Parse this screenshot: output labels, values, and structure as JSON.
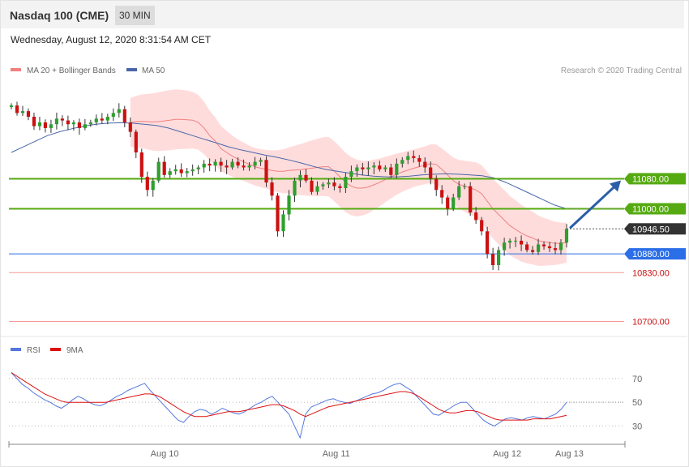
{
  "header": {
    "title": "Nasdaq 100 (CME)",
    "interval": "30 MIN",
    "datetime": "Wednesday, August 12, 2020 8:31:54 AM CET"
  },
  "legend": {
    "ma20_label": "MA 20 + Bollinger Bands",
    "ma50_label": "MA 50",
    "credit": "Research © 2020 Trading Central",
    "rsi_label": "RSI",
    "ma9_label": "9MA"
  },
  "colors": {
    "bull": "#2e9f2e",
    "bear": "#cc1111",
    "bollinger": "#ffd0d0",
    "ma20": "#f08080",
    "ma50": "#4a66a8",
    "resistance": "#55aa11",
    "support": "#2a6ee8",
    "weak": "#f26f6f",
    "arrow": "#2b5da8",
    "rsi": "#5577dd",
    "ma9": "#dd1111"
  },
  "chart_data": [
    {
      "type": "candlestick",
      "title": "Nasdaq 100 (CME)",
      "ylim": [
        10660,
        11340
      ],
      "x_labels": [
        "Aug 10",
        "Aug 11",
        "Aug 12",
        "Aug 13"
      ],
      "levels": [
        {
          "value": 11080,
          "label": "11080.00",
          "kind": "resistance"
        },
        {
          "value": 11000,
          "label": "11000.00",
          "kind": "resistance"
        },
        {
          "value": 10946.5,
          "label": "10946.50",
          "kind": "last"
        },
        {
          "value": 10880,
          "label": "10880.00",
          "kind": "support"
        },
        {
          "value": 10830,
          "label": "10830.00",
          "kind": "weak"
        },
        {
          "value": 10700,
          "label": "10700.00",
          "kind": "weak"
        }
      ],
      "forecast_arrow": {
        "from": 10946,
        "to": 11080
      },
      "close": [
        11275,
        11255,
        11260,
        11245,
        11220,
        11230,
        11215,
        11225,
        11240,
        11235,
        11225,
        11230,
        11215,
        11225,
        11230,
        11240,
        11235,
        11245,
        11255,
        11265,
        11230,
        11205,
        11150,
        11085,
        11050,
        11075,
        11125,
        11090,
        11100,
        11105,
        11095,
        11100,
        11105,
        11110,
        11120,
        11115,
        11125,
        11115,
        11110,
        11125,
        11115,
        11110,
        11115,
        11125,
        11130,
        11070,
        11035,
        10940,
        10985,
        11035,
        11075,
        11090,
        11075,
        11045,
        11060,
        11065,
        11070,
        11060,
        11055,
        11085,
        11100,
        11110,
        11105,
        11110,
        11115,
        11105,
        11110,
        11090,
        11120,
        11130,
        11140,
        11135,
        11125,
        11110,
        11080,
        11050,
        11030,
        11000,
        11030,
        11060,
        11060,
        10990,
        10970,
        10940,
        10880,
        10850,
        10890,
        10910,
        10915,
        10915,
        10905,
        10890,
        10885,
        10905,
        10900,
        10895,
        10890,
        10910,
        10946.5
      ],
      "ma20": [
        11230,
        11232,
        11233,
        11232,
        11231,
        11232,
        11234,
        11236,
        11238,
        11238,
        11237,
        11236,
        11230,
        11215,
        11195,
        11180,
        11160,
        11150,
        11140,
        11132,
        11125,
        11118,
        11112,
        11108,
        11105,
        11102,
        11100,
        11100,
        11102,
        11103,
        11104,
        11106,
        11108,
        11110,
        11112,
        11112,
        11100,
        11085,
        11070,
        11060,
        11055,
        11055,
        11058,
        11064,
        11070,
        11078,
        11085,
        11092,
        11098,
        11103,
        11108,
        11112,
        11116,
        11120,
        11118,
        11105,
        11090,
        11075,
        11065,
        11060,
        11055,
        11050,
        11040,
        11020,
        11000,
        10985,
        10970,
        10955,
        10945,
        10935,
        10928,
        10922,
        10915,
        10912,
        10910,
        10908,
        10908,
        10910
      ],
      "ma50": [
        11150,
        11165,
        11180,
        11195,
        11205,
        11213,
        11220,
        11225,
        11228,
        11229,
        11228,
        11225,
        11222,
        11215,
        11205,
        11195,
        11185,
        11175,
        11165,
        11157,
        11150,
        11143,
        11137,
        11130,
        11122,
        11113,
        11105,
        11100,
        11095,
        11090,
        11087,
        11085,
        11085,
        11087,
        11090,
        11092,
        11093,
        11092,
        11090,
        11088,
        11082,
        11070,
        11055,
        11040,
        11025,
        11010,
        11000
      ]
    },
    {
      "type": "line",
      "series": [
        {
          "name": "RSI"
        },
        {
          "name": "9MA"
        }
      ],
      "yticks": [
        30,
        50,
        70
      ],
      "ylim": [
        20,
        85
      ],
      "rsi": [
        75,
        70,
        65,
        62,
        58,
        55,
        52,
        50,
        47,
        45,
        48,
        52,
        55,
        53,
        50,
        48,
        47,
        49,
        52,
        55,
        57,
        60,
        62,
        64,
        66,
        60,
        55,
        50,
        45,
        40,
        35,
        33,
        38,
        42,
        44,
        43,
        40,
        42,
        45,
        43,
        41,
        40,
        42,
        45,
        48,
        50,
        53,
        55,
        50,
        45,
        40,
        30,
        20,
        40,
        46,
        48,
        50,
        52,
        53,
        51,
        50,
        49,
        51,
        53,
        55,
        57,
        58,
        60,
        63,
        65,
        66,
        63,
        60,
        55,
        50,
        45,
        40,
        39,
        42,
        45,
        48,
        50,
        50,
        45,
        40,
        35,
        32,
        30,
        33,
        36,
        37,
        36,
        35,
        37,
        38,
        37,
        36,
        38,
        40,
        44,
        50
      ],
      "ma9": [
        75,
        72,
        69,
        66,
        63,
        60,
        57,
        55,
        53,
        51,
        50,
        50,
        50,
        50,
        50,
        50,
        50,
        50,
        51,
        52,
        53,
        54,
        55,
        56,
        57,
        57,
        56,
        54,
        51,
        48,
        45,
        42,
        40,
        38,
        38,
        38,
        39,
        40,
        41,
        42,
        42,
        42,
        43,
        44,
        45,
        46,
        47,
        48,
        48,
        47,
        45,
        43,
        40,
        38,
        40,
        42,
        44,
        46,
        47,
        48,
        49,
        50,
        51,
        52,
        53,
        54,
        55,
        56,
        57,
        58,
        59,
        59,
        58,
        56,
        53,
        50,
        47,
        44,
        42,
        41,
        41,
        42,
        43,
        43,
        42,
        40,
        38,
        36,
        35,
        35,
        35,
        35,
        35,
        35,
        36,
        36,
        36,
        36,
        37,
        38,
        39
      ]
    }
  ]
}
